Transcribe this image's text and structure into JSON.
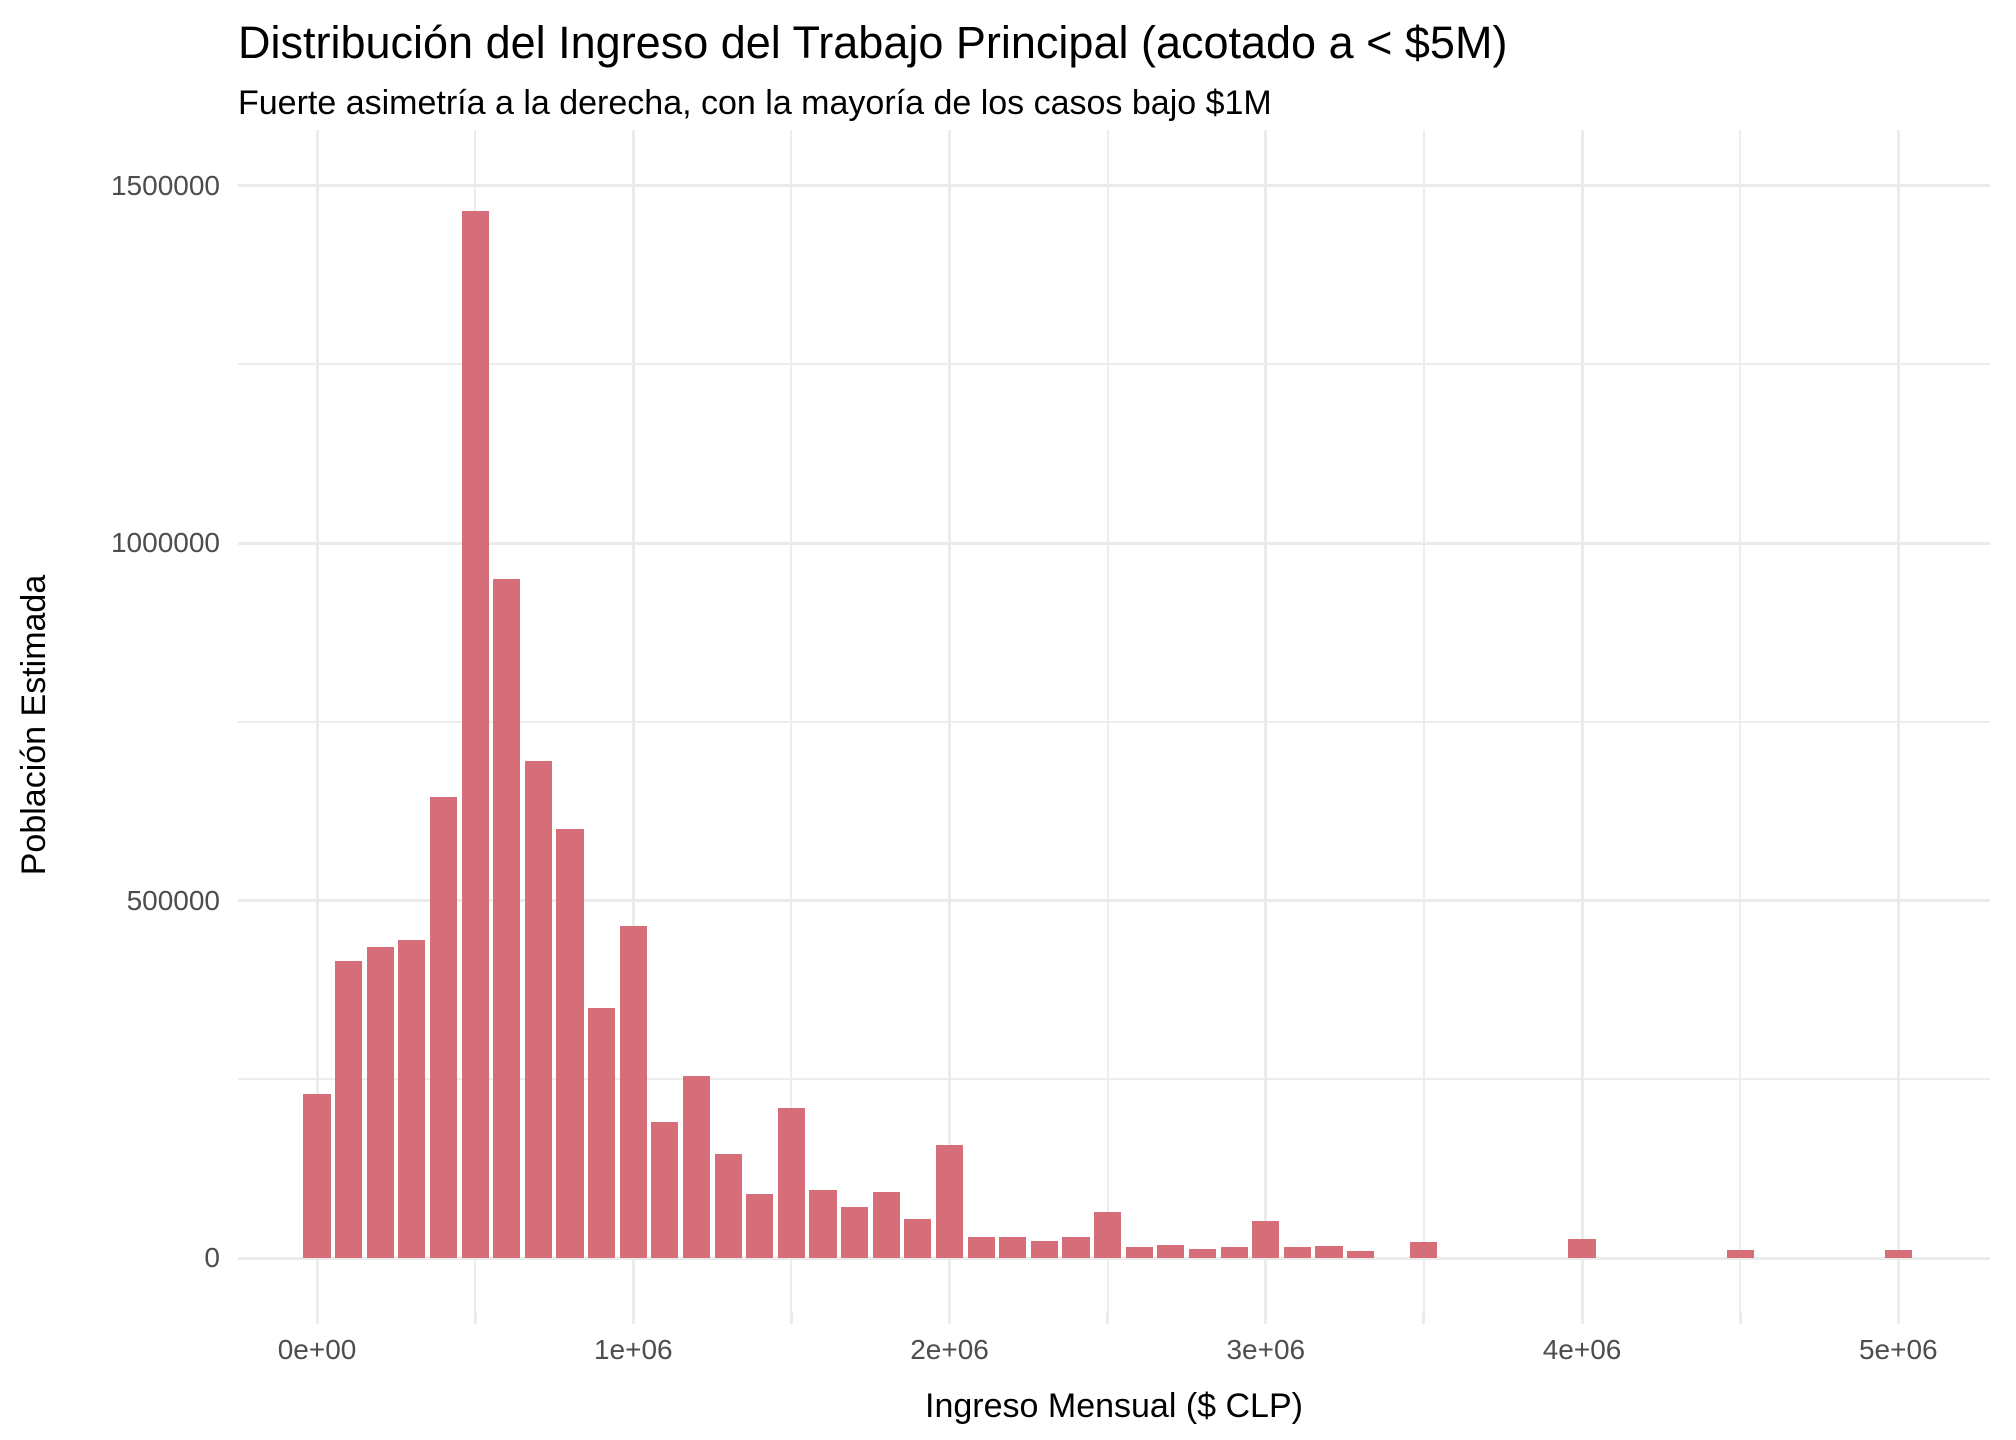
{
  "title": "Distribución del Ingreso del Trabajo Principal (acotado a < $5M)",
  "subtitle": "Fuerte asimetría a la derecha, con la mayoría de los casos bajo $1M",
  "chart_data": {
    "type": "bar",
    "subtype": "histogram",
    "title": "Distribución del Ingreso del Trabajo Principal (acotado a < $5M)",
    "subtitle": "Fuerte asimetría a la derecha, con la mayoría de los casos bajo $1M",
    "xlabel": "Ingreso Mensual ($ CLP)",
    "ylabel": "Población Estimada",
    "bin_width": 100000,
    "bin_centers": [
      0,
      100000,
      200000,
      300000,
      400000,
      500000,
      600000,
      700000,
      800000,
      900000,
      1000000,
      1100000,
      1200000,
      1300000,
      1400000,
      1500000,
      1600000,
      1700000,
      1800000,
      1900000,
      2000000,
      2100000,
      2200000,
      2300000,
      2400000,
      2500000,
      2600000,
      2700000,
      2800000,
      2900000,
      3000000,
      3100000,
      3200000,
      3300000,
      3400000,
      3500000,
      3600000,
      3700000,
      3800000,
      3900000,
      4000000,
      4100000,
      4200000,
      4300000,
      4400000,
      4500000,
      4600000,
      4700000,
      4800000,
      4900000,
      5000000
    ],
    "values": [
      230000,
      415000,
      435000,
      445000,
      645000,
      1465000,
      950000,
      695000,
      600000,
      350000,
      465000,
      190000,
      255000,
      145000,
      90000,
      210000,
      95000,
      72000,
      93000,
      55000,
      158000,
      30000,
      30000,
      24000,
      29000,
      65000,
      16000,
      18000,
      13000,
      16000,
      52000,
      16000,
      17000,
      10000,
      0,
      22000,
      0,
      0,
      0,
      0,
      27000,
      0,
      0,
      0,
      0,
      11000,
      0,
      0,
      0,
      0,
      11000
    ],
    "x_tick_values": [
      0,
      1000000,
      2000000,
      3000000,
      4000000,
      5000000
    ],
    "x_tick_labels": [
      "0e+00",
      "1e+06",
      "2e+06",
      "3e+06",
      "4e+06",
      "5e+06"
    ],
    "x_minor_tick_values": [
      500000,
      1500000,
      2500000,
      3500000,
      4500000
    ],
    "y_tick_values": [
      0,
      500000,
      1000000,
      1500000
    ],
    "y_tick_labels": [
      "0",
      "500000",
      "1000000",
      "1500000"
    ],
    "y_minor_tick_values": [
      250000,
      750000,
      1250000
    ],
    "xlim": [
      -250000,
      5290000
    ],
    "ylim": [
      -75500,
      1578000
    ],
    "grid": true,
    "legend_position": "none",
    "colors": {
      "bar_fill": "#D66E7A",
      "gridline_major": "#EBEBEB",
      "gridline_minor": "#EDEDED",
      "tick_label": "#4D4D4D",
      "text": "#000000",
      "background": "#FFFFFF"
    }
  }
}
